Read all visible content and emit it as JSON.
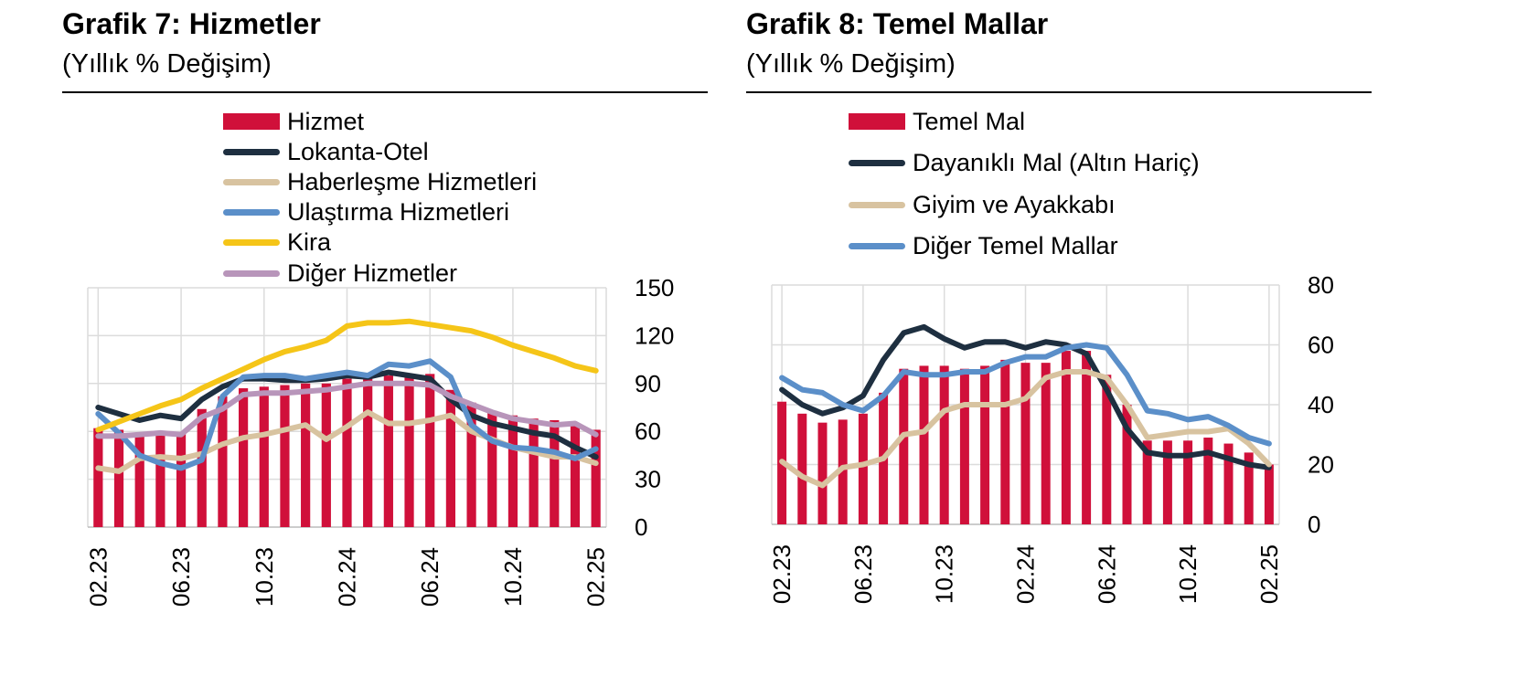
{
  "charts": [
    {
      "title": "Grafik 7: Hizmetler",
      "subtitle": "(Yıllık % Değişim)"
    },
    {
      "title": "Grafik 8: Temel Mallar",
      "subtitle": "(Yıllık % Değişim)"
    }
  ],
  "chart_data": [
    {
      "type": "bar",
      "title": "Grafik 7: Hizmetler",
      "subtitle": "(Yıllık % Değişim)",
      "x": [
        "02.23",
        "03.23",
        "04.23",
        "05.23",
        "06.23",
        "07.23",
        "08.23",
        "09.23",
        "10.23",
        "11.23",
        "12.23",
        "01.24",
        "02.24",
        "03.24",
        "04.24",
        "05.24",
        "06.24",
        "07.24",
        "08.24",
        "09.24",
        "10.24",
        "11.24",
        "12.24",
        "01.25",
        "02.25"
      ],
      "x_tick_labels": [
        "02.23",
        "06.23",
        "10.23",
        "02.24",
        "06.24",
        "10.24",
        "02.25"
      ],
      "y_tick_labels": [
        "0",
        "30",
        "60",
        "90",
        "120",
        "150"
      ],
      "ylim": [
        0,
        150
      ],
      "y_axis_side": "right",
      "grid": true,
      "legend_position": "top",
      "series": [
        {
          "name": "Hizmet",
          "kind": "bar",
          "color": "#d0103a",
          "values": [
            62,
            61,
            57,
            58,
            59,
            74,
            82,
            87,
            88,
            89,
            90,
            90,
            93,
            94,
            95,
            96,
            96,
            86,
            78,
            73,
            70,
            68,
            67,
            65,
            61
          ]
        },
        {
          "name": "Lokanta-Otel",
          "kind": "line",
          "color": "#1e2f40",
          "values": [
            75,
            71,
            67,
            70,
            68,
            80,
            88,
            93,
            93,
            92,
            92,
            93,
            95,
            94,
            97,
            95,
            93,
            80,
            70,
            65,
            62,
            59,
            57,
            50,
            44
          ]
        },
        {
          "name": "Haberleşme Hizmetleri",
          "kind": "line",
          "color": "#d8c3a0",
          "values": [
            37,
            35,
            43,
            44,
            43,
            46,
            52,
            56,
            58,
            61,
            64,
            55,
            63,
            72,
            65,
            65,
            67,
            70,
            60,
            55,
            50,
            47,
            44,
            44,
            40
          ]
        },
        {
          "name": "Ulaştırma Hizmetleri",
          "kind": "line",
          "color": "#5b8fc9",
          "values": [
            71,
            59,
            45,
            40,
            37,
            42,
            82,
            94,
            95,
            95,
            93,
            95,
            97,
            95,
            102,
            101,
            104,
            94,
            64,
            54,
            50,
            49,
            47,
            43,
            49
          ]
        },
        {
          "name": "Kira",
          "kind": "line",
          "color": "#f5c518",
          "values": [
            61,
            66,
            71,
            76,
            80,
            87,
            93,
            99,
            105,
            110,
            113,
            117,
            126,
            128,
            128,
            129,
            127,
            125,
            123,
            119,
            114,
            110,
            106,
            101,
            98
          ]
        },
        {
          "name": "Diğer Hizmetler",
          "kind": "line",
          "color": "#b895ba",
          "values": [
            57,
            57,
            58,
            59,
            58,
            69,
            74,
            83,
            84,
            84,
            85,
            86,
            88,
            90,
            90,
            90,
            89,
            82,
            77,
            72,
            68,
            66,
            64,
            65,
            58
          ]
        }
      ]
    },
    {
      "type": "bar",
      "title": "Grafik 8: Temel Mallar",
      "subtitle": "(Yıllık % Değişim)",
      "x": [
        "02.23",
        "03.23",
        "04.23",
        "05.23",
        "06.23",
        "07.23",
        "08.23",
        "09.23",
        "10.23",
        "11.23",
        "12.23",
        "01.24",
        "02.24",
        "03.24",
        "04.24",
        "05.24",
        "06.24",
        "07.24",
        "08.24",
        "09.24",
        "10.24",
        "11.24",
        "12.24",
        "01.25",
        "02.25"
      ],
      "x_tick_labels": [
        "02.23",
        "06.23",
        "10.23",
        "02.24",
        "06.24",
        "10.24",
        "02.25"
      ],
      "y_tick_labels": [
        "0",
        "20",
        "40",
        "60",
        "80"
      ],
      "ylim": [
        0,
        80
      ],
      "y_axis_side": "right",
      "grid": true,
      "legend_position": "top",
      "series": [
        {
          "name": "Temel Mal",
          "kind": "bar",
          "color": "#d0103a",
          "values": [
            41,
            37,
            34,
            35,
            37,
            44,
            52,
            53,
            53,
            52,
            53,
            55,
            54,
            54,
            58,
            58,
            50,
            40,
            28,
            28,
            28,
            29,
            27,
            24,
            20
          ]
        },
        {
          "name": "Dayanıklı Mal (Altın Hariç)",
          "kind": "line",
          "color": "#1e2f40",
          "values": [
            45,
            40,
            37,
            39,
            43,
            55,
            64,
            66,
            62,
            59,
            61,
            61,
            59,
            61,
            60,
            57,
            45,
            32,
            24,
            23,
            23,
            24,
            22,
            20,
            19
          ]
        },
        {
          "name": "Giyim ve Ayakkabı",
          "kind": "line",
          "color": "#d8c3a0",
          "values": [
            21,
            16,
            13,
            19,
            20,
            22,
            30,
            31,
            38,
            40,
            40,
            40,
            42,
            49,
            51,
            51,
            49,
            40,
            29,
            30,
            31,
            31,
            32,
            27,
            20
          ]
        },
        {
          "name": "Diğer Temel Mallar",
          "kind": "line",
          "color": "#5b8fc9",
          "values": [
            49,
            45,
            44,
            40,
            38,
            43,
            51,
            50,
            50,
            51,
            51,
            54,
            56,
            56,
            59,
            60,
            59,
            50,
            38,
            37,
            35,
            36,
            33,
            29,
            27
          ]
        }
      ]
    }
  ]
}
